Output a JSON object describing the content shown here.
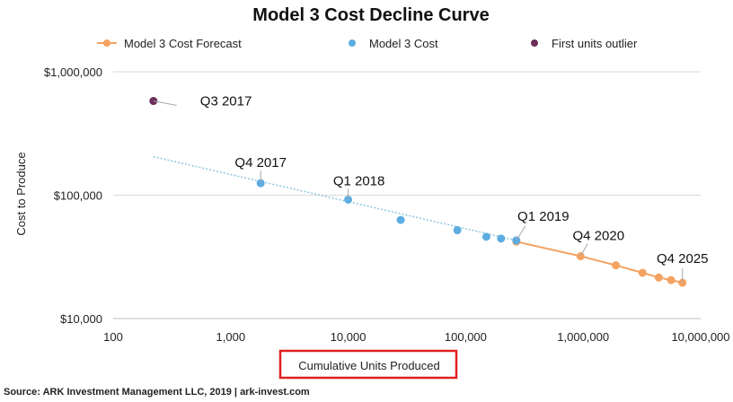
{
  "chart_data": {
    "type": "scatter",
    "title": "Model 3 Cost Decline Curve",
    "xlabel": "Cumulative Units Produced",
    "ylabel": "Cost to Produce",
    "x_scale": "log",
    "y_scale": "log",
    "xlim": [
      100,
      10000000
    ],
    "ylim": [
      10000,
      1000000
    ],
    "x_ticks": [
      "100",
      "1,000",
      "10,000",
      "100,000",
      "1,000,000",
      "10,000,000"
    ],
    "y_ticks": [
      "$10,000",
      "$100,000",
      "$1,000,000"
    ],
    "legend_position": "top",
    "grid": "horizontal",
    "series": [
      {
        "name": "Model 3 Cost Forecast",
        "color": "#F4A261",
        "style": "line-marker",
        "points": [
          [
            270000,
            42000
          ],
          [
            950000,
            32000
          ],
          [
            1900000,
            27000
          ],
          [
            3200000,
            23500
          ],
          [
            4400000,
            21500
          ],
          [
            5600000,
            20500
          ],
          [
            7000000,
            19500
          ]
        ]
      },
      {
        "name": "Model 3 Cost",
        "color": "#5DADE2",
        "style": "marker",
        "points": [
          [
            1800,
            125000
          ],
          [
            10000,
            92000
          ],
          [
            28000,
            63000
          ],
          [
            85000,
            52000
          ],
          [
            150000,
            46000
          ],
          [
            200000,
            44500
          ],
          [
            270000,
            43000
          ]
        ]
      },
      {
        "name": "First units outlier",
        "color": "#6B2D5C",
        "style": "marker",
        "points": [
          [
            220,
            580000
          ]
        ]
      }
    ],
    "trendline": {
      "color": "#8EC5E0",
      "points": [
        [
          220,
          205000
        ],
        [
          270000,
          43000
        ]
      ]
    },
    "annotations": [
      {
        "text": "Q3 2017",
        "point": [
          220,
          580000
        ]
      },
      {
        "text": "Q4 2017",
        "point": [
          1800,
          125000
        ]
      },
      {
        "text": "Q1 2018",
        "point": [
          10000,
          92000
        ]
      },
      {
        "text": "Q1 2019",
        "point": [
          270000,
          43000
        ]
      },
      {
        "text": "Q4 2020",
        "point": [
          950000,
          32000
        ]
      },
      {
        "text": "Q4 2025",
        "point": [
          7000000,
          19500
        ]
      }
    ]
  },
  "source_text": "Source: ARK Investment Management LLC, 2019  |  ark-invest.com",
  "highlight_color": "#E02020"
}
